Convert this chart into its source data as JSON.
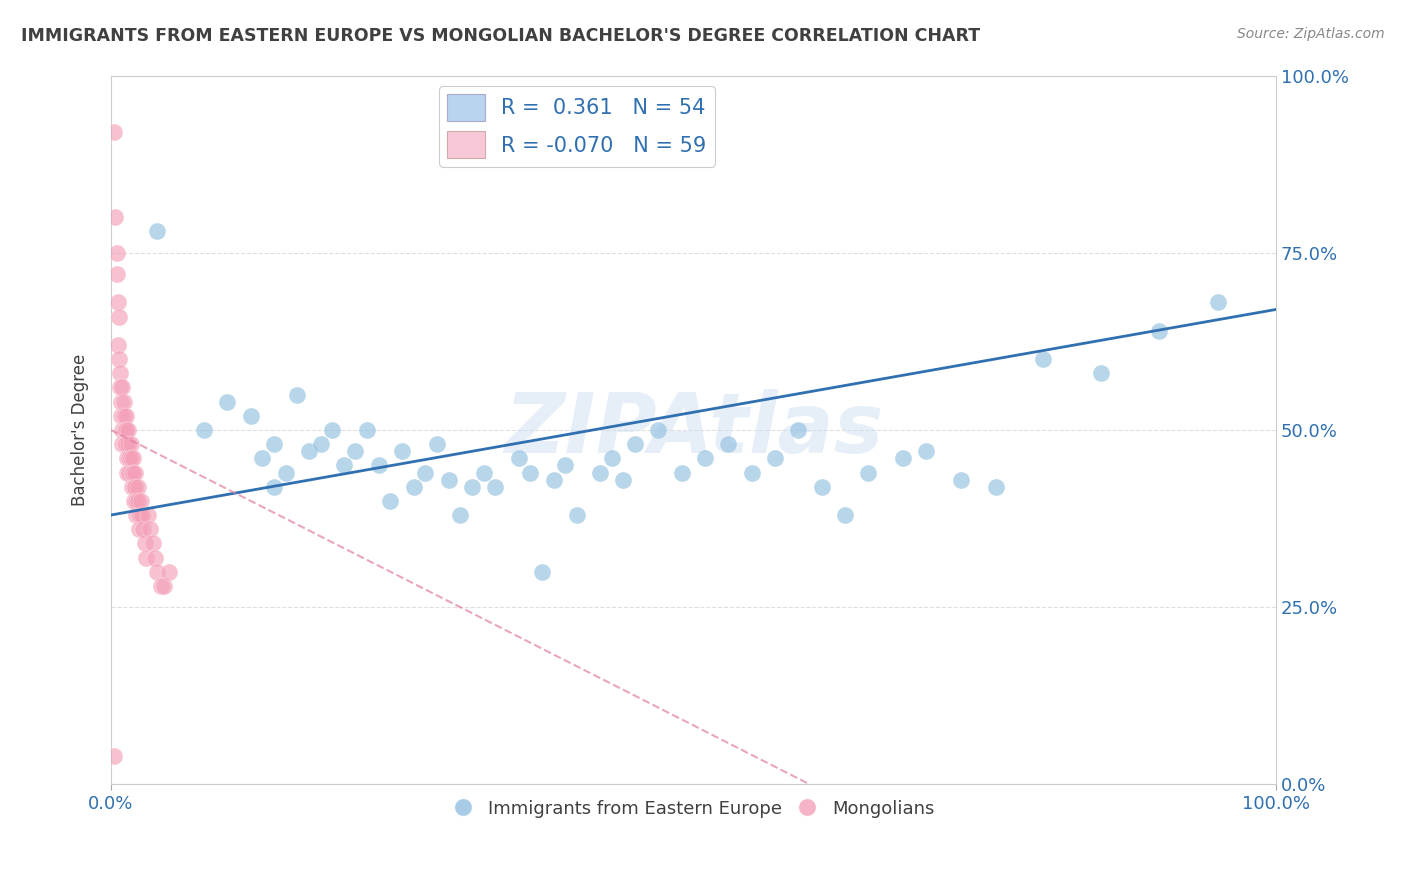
{
  "title": "IMMIGRANTS FROM EASTERN EUROPE VS MONGOLIAN BACHELOR'S DEGREE CORRELATION CHART",
  "source": "Source: ZipAtlas.com",
  "ylabel": "Bachelor's Degree",
  "watermark": "ZIPAtlas",
  "xlim": [
    0.0,
    1.0
  ],
  "ylim": [
    0.0,
    1.0
  ],
  "ytick_positions": [
    0.0,
    0.25,
    0.5,
    0.75,
    1.0
  ],
  "ytick_labels": [
    "0.0%",
    "25.0%",
    "50.0%",
    "75.0%",
    "100.0%"
  ],
  "xtick_positions": [
    0.0,
    1.0
  ],
  "xtick_labels": [
    "0.0%",
    "100.0%"
  ],
  "blue_R": 0.361,
  "blue_N": 54,
  "pink_R": -0.07,
  "pink_N": 59,
  "blue_color": "#92c0e0",
  "pink_color": "#f4a0b8",
  "blue_line_color": "#3070b0",
  "pink_line_color": "#e080a0",
  "legend_blue_face": "#b8d4ee",
  "legend_pink_face": "#f8c8d8",
  "blue_scatter_x": [
    0.04,
    0.08,
    0.1,
    0.12,
    0.13,
    0.14,
    0.14,
    0.15,
    0.16,
    0.17,
    0.18,
    0.19,
    0.2,
    0.21,
    0.22,
    0.23,
    0.24,
    0.25,
    0.26,
    0.27,
    0.28,
    0.29,
    0.3,
    0.31,
    0.32,
    0.33,
    0.35,
    0.36,
    0.37,
    0.38,
    0.39,
    0.4,
    0.42,
    0.43,
    0.44,
    0.45,
    0.47,
    0.49,
    0.51,
    0.53,
    0.55,
    0.57,
    0.59,
    0.61,
    0.63,
    0.65,
    0.68,
    0.7,
    0.73,
    0.76,
    0.8,
    0.85,
    0.9,
    0.95
  ],
  "blue_scatter_y": [
    0.78,
    0.5,
    0.54,
    0.52,
    0.46,
    0.48,
    0.42,
    0.44,
    0.55,
    0.47,
    0.48,
    0.5,
    0.45,
    0.47,
    0.5,
    0.45,
    0.4,
    0.47,
    0.42,
    0.44,
    0.48,
    0.43,
    0.38,
    0.42,
    0.44,
    0.42,
    0.46,
    0.44,
    0.3,
    0.43,
    0.45,
    0.38,
    0.44,
    0.46,
    0.43,
    0.48,
    0.5,
    0.44,
    0.46,
    0.48,
    0.44,
    0.46,
    0.5,
    0.42,
    0.38,
    0.44,
    0.46,
    0.47,
    0.43,
    0.42,
    0.6,
    0.58,
    0.64,
    0.68
  ],
  "pink_scatter_x": [
    0.003,
    0.004,
    0.005,
    0.005,
    0.006,
    0.006,
    0.007,
    0.007,
    0.008,
    0.008,
    0.009,
    0.009,
    0.01,
    0.01,
    0.01,
    0.011,
    0.011,
    0.012,
    0.012,
    0.013,
    0.013,
    0.013,
    0.014,
    0.014,
    0.015,
    0.015,
    0.016,
    0.016,
    0.017,
    0.017,
    0.018,
    0.018,
    0.019,
    0.019,
    0.02,
    0.02,
    0.021,
    0.021,
    0.022,
    0.022,
    0.023,
    0.023,
    0.024,
    0.024,
    0.025,
    0.026,
    0.027,
    0.028,
    0.029,
    0.03,
    0.032,
    0.034,
    0.036,
    0.038,
    0.04,
    0.043,
    0.046,
    0.05,
    0.003
  ],
  "pink_scatter_y": [
    0.92,
    0.8,
    0.75,
    0.72,
    0.68,
    0.62,
    0.66,
    0.6,
    0.58,
    0.56,
    0.54,
    0.52,
    0.5,
    0.48,
    0.56,
    0.54,
    0.52,
    0.5,
    0.48,
    0.52,
    0.5,
    0.48,
    0.46,
    0.44,
    0.5,
    0.48,
    0.46,
    0.44,
    0.48,
    0.46,
    0.44,
    0.42,
    0.46,
    0.44,
    0.42,
    0.4,
    0.44,
    0.42,
    0.4,
    0.38,
    0.42,
    0.4,
    0.38,
    0.36,
    0.38,
    0.4,
    0.38,
    0.36,
    0.34,
    0.32,
    0.38,
    0.36,
    0.34,
    0.32,
    0.3,
    0.28,
    0.28,
    0.3,
    0.04
  ],
  "blue_line_x0": 0.0,
  "blue_line_y0": 0.38,
  "blue_line_x1": 1.0,
  "blue_line_y1": 0.67,
  "pink_line_x0": 0.0,
  "pink_line_y0": 0.5,
  "pink_line_x1": 0.6,
  "pink_line_y1": 0.0,
  "background_color": "#ffffff",
  "grid_color": "#d8d8d8",
  "title_color": "#404040",
  "text_color": "#3070b0"
}
